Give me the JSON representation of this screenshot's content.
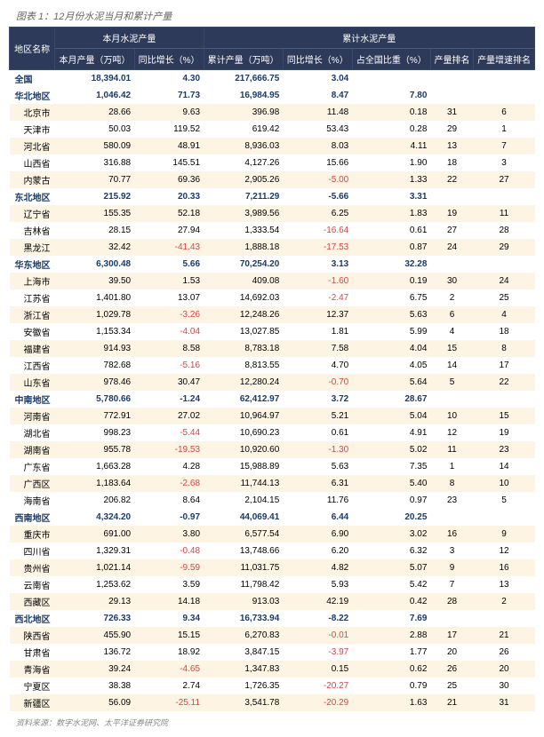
{
  "chart": {
    "title": "图表 1：12月份水泥当月和累计产量",
    "footer": "资料来源：数字水泥网、太平洋证券研究院",
    "colors": {
      "header_bg": "#2d3a5a",
      "header_fg": "#ffffff",
      "row_alt_bg": "#fdf4e3",
      "row_bg": "#ffffff",
      "negative": "#d94545",
      "region_fg": "#1a3a6a"
    },
    "fontsize_body": 10,
    "fontsize_title": 11,
    "columns": {
      "region": "地区名称",
      "month_group": "本月水泥产量",
      "month_output": "本月产量（万吨）",
      "month_yoy": "同比增长（%）",
      "cum_group": "累计水泥产量",
      "cum_output": "累计产量（万吨）",
      "cum_yoy": "同比增长（%）",
      "share": "占全国比重（%）",
      "rank_output": "产量排名",
      "rank_growth": "产量增速排名"
    },
    "rows": [
      {
        "name": "全国",
        "type": "region",
        "monthOutput": "18,394.01",
        "monthYoy": "4.30",
        "cumOutput": "217,666.75",
        "cumYoy": "3.04",
        "share": "",
        "rankOut": "",
        "rankGrowth": ""
      },
      {
        "name": "华北地区",
        "type": "region",
        "monthOutput": "1,046.42",
        "monthYoy": "71.73",
        "cumOutput": "16,984.95",
        "cumYoy": "8.47",
        "share": "7.80",
        "rankOut": "",
        "rankGrowth": ""
      },
      {
        "name": "北京市",
        "type": "sub",
        "monthOutput": "28.66",
        "monthYoy": "9.63",
        "cumOutput": "396.98",
        "cumYoy": "11.48",
        "share": "0.18",
        "rankOut": "31",
        "rankGrowth": "6"
      },
      {
        "name": "天津市",
        "type": "sub",
        "monthOutput": "50.03",
        "monthYoy": "119.52",
        "cumOutput": "619.42",
        "cumYoy": "53.43",
        "share": "0.28",
        "rankOut": "29",
        "rankGrowth": "1"
      },
      {
        "name": "河北省",
        "type": "sub",
        "monthOutput": "580.09",
        "monthYoy": "48.91",
        "cumOutput": "8,936.03",
        "cumYoy": "8.03",
        "share": "4.11",
        "rankOut": "13",
        "rankGrowth": "7"
      },
      {
        "name": "山西省",
        "type": "sub",
        "monthOutput": "316.88",
        "monthYoy": "145.51",
        "cumOutput": "4,127.26",
        "cumYoy": "15.66",
        "share": "1.90",
        "rankOut": "18",
        "rankGrowth": "3"
      },
      {
        "name": "内蒙古",
        "type": "sub",
        "monthOutput": "70.77",
        "monthYoy": "69.36",
        "cumOutput": "2,905.26",
        "cumYoy": "-5.00",
        "share": "1.33",
        "rankOut": "22",
        "rankGrowth": "27"
      },
      {
        "name": "东北地区",
        "type": "region",
        "monthOutput": "215.92",
        "monthYoy": "20.33",
        "cumOutput": "7,211.29",
        "cumYoy": "-5.66",
        "share": "3.31",
        "rankOut": "",
        "rankGrowth": ""
      },
      {
        "name": "辽宁省",
        "type": "sub",
        "monthOutput": "155.35",
        "monthYoy": "52.18",
        "cumOutput": "3,989.56",
        "cumYoy": "6.25",
        "share": "1.83",
        "rankOut": "19",
        "rankGrowth": "11"
      },
      {
        "name": "吉林省",
        "type": "sub",
        "monthOutput": "28.15",
        "monthYoy": "27.94",
        "cumOutput": "1,333.54",
        "cumYoy": "-16.64",
        "share": "0.61",
        "rankOut": "27",
        "rankGrowth": "28"
      },
      {
        "name": "黑龙江",
        "type": "sub",
        "monthOutput": "32.42",
        "monthYoy": "-41.43",
        "cumOutput": "1,888.18",
        "cumYoy": "-17.53",
        "share": "0.87",
        "rankOut": "24",
        "rankGrowth": "29"
      },
      {
        "name": "华东地区",
        "type": "region",
        "monthOutput": "6,300.48",
        "monthYoy": "5.66",
        "cumOutput": "70,254.20",
        "cumYoy": "3.13",
        "share": "32.28",
        "rankOut": "",
        "rankGrowth": ""
      },
      {
        "name": "上海市",
        "type": "sub",
        "monthOutput": "39.50",
        "monthYoy": "1.53",
        "cumOutput": "409.08",
        "cumYoy": "-1.60",
        "share": "0.19",
        "rankOut": "30",
        "rankGrowth": "24"
      },
      {
        "name": "江苏省",
        "type": "sub",
        "monthOutput": "1,401.80",
        "monthYoy": "13.07",
        "cumOutput": "14,692.03",
        "cumYoy": "-2.47",
        "share": "6.75",
        "rankOut": "2",
        "rankGrowth": "25"
      },
      {
        "name": "浙江省",
        "type": "sub",
        "monthOutput": "1,029.78",
        "monthYoy": "-3.26",
        "cumOutput": "12,248.26",
        "cumYoy": "12.37",
        "share": "5.63",
        "rankOut": "6",
        "rankGrowth": "4"
      },
      {
        "name": "安徽省",
        "type": "sub",
        "monthOutput": "1,153.34",
        "monthYoy": "-4.04",
        "cumOutput": "13,027.85",
        "cumYoy": "1.81",
        "share": "5.99",
        "rankOut": "4",
        "rankGrowth": "18"
      },
      {
        "name": "福建省",
        "type": "sub",
        "monthOutput": "914.93",
        "monthYoy": "8.58",
        "cumOutput": "8,783.18",
        "cumYoy": "7.58",
        "share": "4.04",
        "rankOut": "15",
        "rankGrowth": "8"
      },
      {
        "name": "江西省",
        "type": "sub",
        "monthOutput": "782.68",
        "monthYoy": "-5.16",
        "cumOutput": "8,813.55",
        "cumYoy": "4.70",
        "share": "4.05",
        "rankOut": "14",
        "rankGrowth": "17"
      },
      {
        "name": "山东省",
        "type": "sub",
        "monthOutput": "978.46",
        "monthYoy": "30.47",
        "cumOutput": "12,280.24",
        "cumYoy": "-0.70",
        "share": "5.64",
        "rankOut": "5",
        "rankGrowth": "22"
      },
      {
        "name": "中南地区",
        "type": "region",
        "monthOutput": "5,780.66",
        "monthYoy": "-1.24",
        "cumOutput": "62,412.97",
        "cumYoy": "3.72",
        "share": "28.67",
        "rankOut": "",
        "rankGrowth": ""
      },
      {
        "name": "河南省",
        "type": "sub",
        "monthOutput": "772.91",
        "monthYoy": "27.02",
        "cumOutput": "10,964.97",
        "cumYoy": "5.21",
        "share": "5.04",
        "rankOut": "10",
        "rankGrowth": "15"
      },
      {
        "name": "湖北省",
        "type": "sub",
        "monthOutput": "998.23",
        "monthYoy": "-5.44",
        "cumOutput": "10,690.23",
        "cumYoy": "0.61",
        "share": "4.91",
        "rankOut": "12",
        "rankGrowth": "19"
      },
      {
        "name": "湖南省",
        "type": "sub",
        "monthOutput": "955.78",
        "monthYoy": "-19.53",
        "cumOutput": "10,920.60",
        "cumYoy": "-1.30",
        "share": "5.02",
        "rankOut": "11",
        "rankGrowth": "23"
      },
      {
        "name": "广东省",
        "type": "sub",
        "monthOutput": "1,663.28",
        "monthYoy": "4.28",
        "cumOutput": "15,988.89",
        "cumYoy": "5.63",
        "share": "7.35",
        "rankOut": "1",
        "rankGrowth": "14"
      },
      {
        "name": "广西区",
        "type": "sub",
        "monthOutput": "1,183.64",
        "monthYoy": "-2.68",
        "cumOutput": "11,744.13",
        "cumYoy": "6.31",
        "share": "5.40",
        "rankOut": "8",
        "rankGrowth": "10"
      },
      {
        "name": "海南省",
        "type": "sub",
        "monthOutput": "206.82",
        "monthYoy": "8.64",
        "cumOutput": "2,104.15",
        "cumYoy": "11.76",
        "share": "0.97",
        "rankOut": "23",
        "rankGrowth": "5"
      },
      {
        "name": "西南地区",
        "type": "region",
        "monthOutput": "4,324.20",
        "monthYoy": "-0.97",
        "cumOutput": "44,069.41",
        "cumYoy": "6.44",
        "share": "20.25",
        "rankOut": "",
        "rankGrowth": ""
      },
      {
        "name": "重庆市",
        "type": "sub",
        "monthOutput": "691.00",
        "monthYoy": "3.80",
        "cumOutput": "6,577.54",
        "cumYoy": "6.90",
        "share": "3.02",
        "rankOut": "16",
        "rankGrowth": "9"
      },
      {
        "name": "四川省",
        "type": "sub",
        "monthOutput": "1,329.31",
        "monthYoy": "-0.48",
        "cumOutput": "13,748.66",
        "cumYoy": "6.20",
        "share": "6.32",
        "rankOut": "3",
        "rankGrowth": "12"
      },
      {
        "name": "贵州省",
        "type": "sub",
        "monthOutput": "1,021.14",
        "monthYoy": "-9.59",
        "cumOutput": "11,031.75",
        "cumYoy": "4.82",
        "share": "5.07",
        "rankOut": "9",
        "rankGrowth": "16"
      },
      {
        "name": "云南省",
        "type": "sub",
        "monthOutput": "1,253.62",
        "monthYoy": "3.59",
        "cumOutput": "11,798.42",
        "cumYoy": "5.93",
        "share": "5.42",
        "rankOut": "7",
        "rankGrowth": "13"
      },
      {
        "name": "西藏区",
        "type": "sub",
        "monthOutput": "29.13",
        "monthYoy": "14.18",
        "cumOutput": "913.03",
        "cumYoy": "42.19",
        "share": "0.42",
        "rankOut": "28",
        "rankGrowth": "2"
      },
      {
        "name": "西北地区",
        "type": "region",
        "monthOutput": "726.33",
        "monthYoy": "9.34",
        "cumOutput": "16,733.94",
        "cumYoy": "-8.22",
        "share": "7.69",
        "rankOut": "",
        "rankGrowth": ""
      },
      {
        "name": "陕西省",
        "type": "sub",
        "monthOutput": "455.90",
        "monthYoy": "15.15",
        "cumOutput": "6,270.83",
        "cumYoy": "-0.01",
        "share": "2.88",
        "rankOut": "17",
        "rankGrowth": "21"
      },
      {
        "name": "甘肃省",
        "type": "sub",
        "monthOutput": "136.72",
        "monthYoy": "18.92",
        "cumOutput": "3,847.15",
        "cumYoy": "-3.97",
        "share": "1.77",
        "rankOut": "20",
        "rankGrowth": "26"
      },
      {
        "name": "青海省",
        "type": "sub",
        "monthOutput": "39.24",
        "monthYoy": "-4.65",
        "cumOutput": "1,347.83",
        "cumYoy": "0.15",
        "share": "0.62",
        "rankOut": "26",
        "rankGrowth": "20"
      },
      {
        "name": "宁夏区",
        "type": "sub",
        "monthOutput": "38.38",
        "monthYoy": "2.74",
        "cumOutput": "1,726.35",
        "cumYoy": "-20.27",
        "share": "0.79",
        "rankOut": "25",
        "rankGrowth": "30"
      },
      {
        "name": "新疆区",
        "type": "sub",
        "monthOutput": "56.09",
        "monthYoy": "-25.11",
        "cumOutput": "3,541.78",
        "cumYoy": "-20.29",
        "share": "1.63",
        "rankOut": "21",
        "rankGrowth": "31"
      }
    ]
  }
}
